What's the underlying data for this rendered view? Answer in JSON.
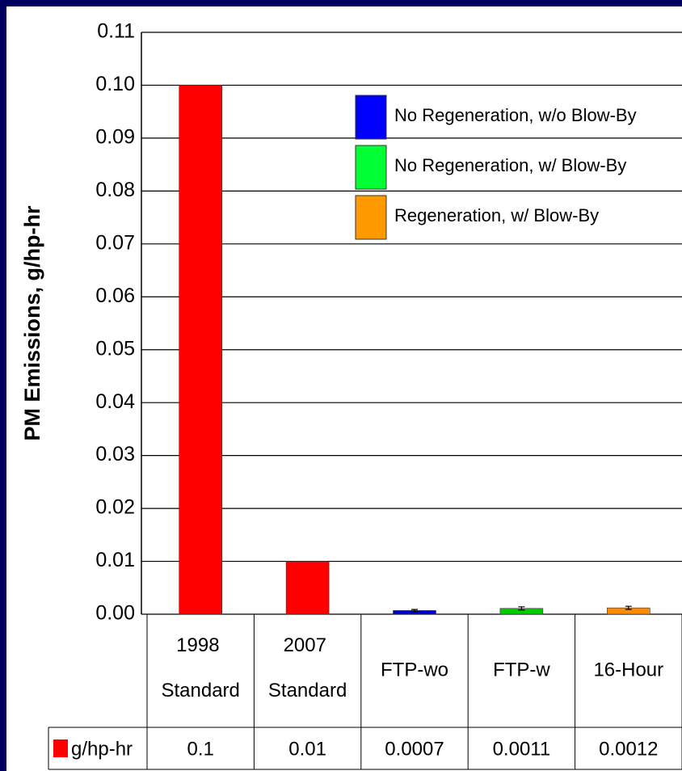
{
  "chart_data": {
    "type": "bar",
    "y_label": "PM Emissions, g/hp-hr",
    "categories": [
      "1998 Standard",
      "2007 Standard",
      "FTP-wo",
      "FTP-w",
      "16-Hour"
    ],
    "values": [
      0.1,
      0.01,
      0.0007,
      0.0011,
      0.0012
    ],
    "errors": [
      null,
      null,
      0.0002,
      0.0003,
      0.0003
    ],
    "colors": [
      "#ff0000",
      "#ff0000",
      "#0000cc",
      "#00cc00",
      "#ff8c00"
    ],
    "table_row_label": "g/hp-hr",
    "table_row_color": "#ff0000",
    "legend": [
      {
        "name": "No Regeneration, w/o Blow-By",
        "color": "#0000ff"
      },
      {
        "name": "No Regeneration, w/ Blow-By",
        "color": "#00ff33"
      },
      {
        "name": "Regeneration, w/ Blow-By",
        "color": "#ff9900"
      }
    ],
    "ylim": [
      0,
      0.11
    ],
    "yticks": [
      {
        "value": 0,
        "label": "0.00"
      },
      0.01,
      0.02,
      0.03,
      0.04,
      0.05,
      0.06,
      0.07,
      0.08,
      0.09,
      {
        "value": 0.1,
        "label": "0.10"
      },
      0.11
    ],
    "grid": true
  }
}
